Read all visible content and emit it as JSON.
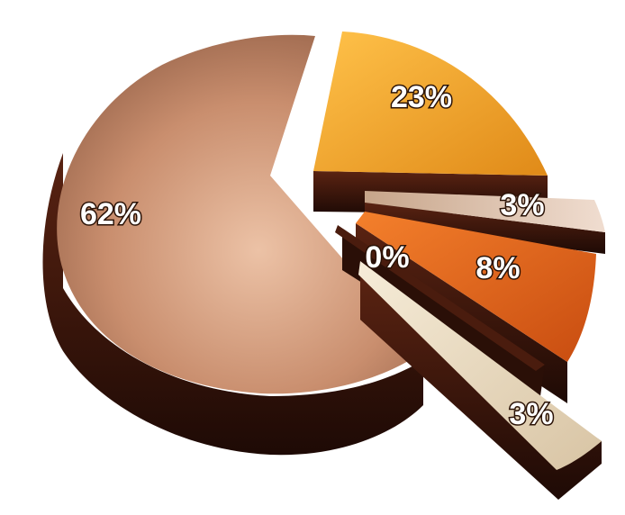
{
  "chart_data": {
    "type": "pie",
    "style": "3d-exploded",
    "slices": [
      {
        "label": "62%",
        "value": 62,
        "color": "#c98e6e"
      },
      {
        "label": "23%",
        "value": 23,
        "color": "#f2a82c"
      },
      {
        "label": "3%",
        "value": 3,
        "color": "#d9b8a0"
      },
      {
        "label": "8%",
        "value": 8,
        "color": "#e8661c"
      },
      {
        "label": "0%",
        "value": 0,
        "color": "#3a160c"
      },
      {
        "label": "3%",
        "value": 3,
        "color": "#eadcc4"
      }
    ],
    "title": "",
    "legend": false
  }
}
